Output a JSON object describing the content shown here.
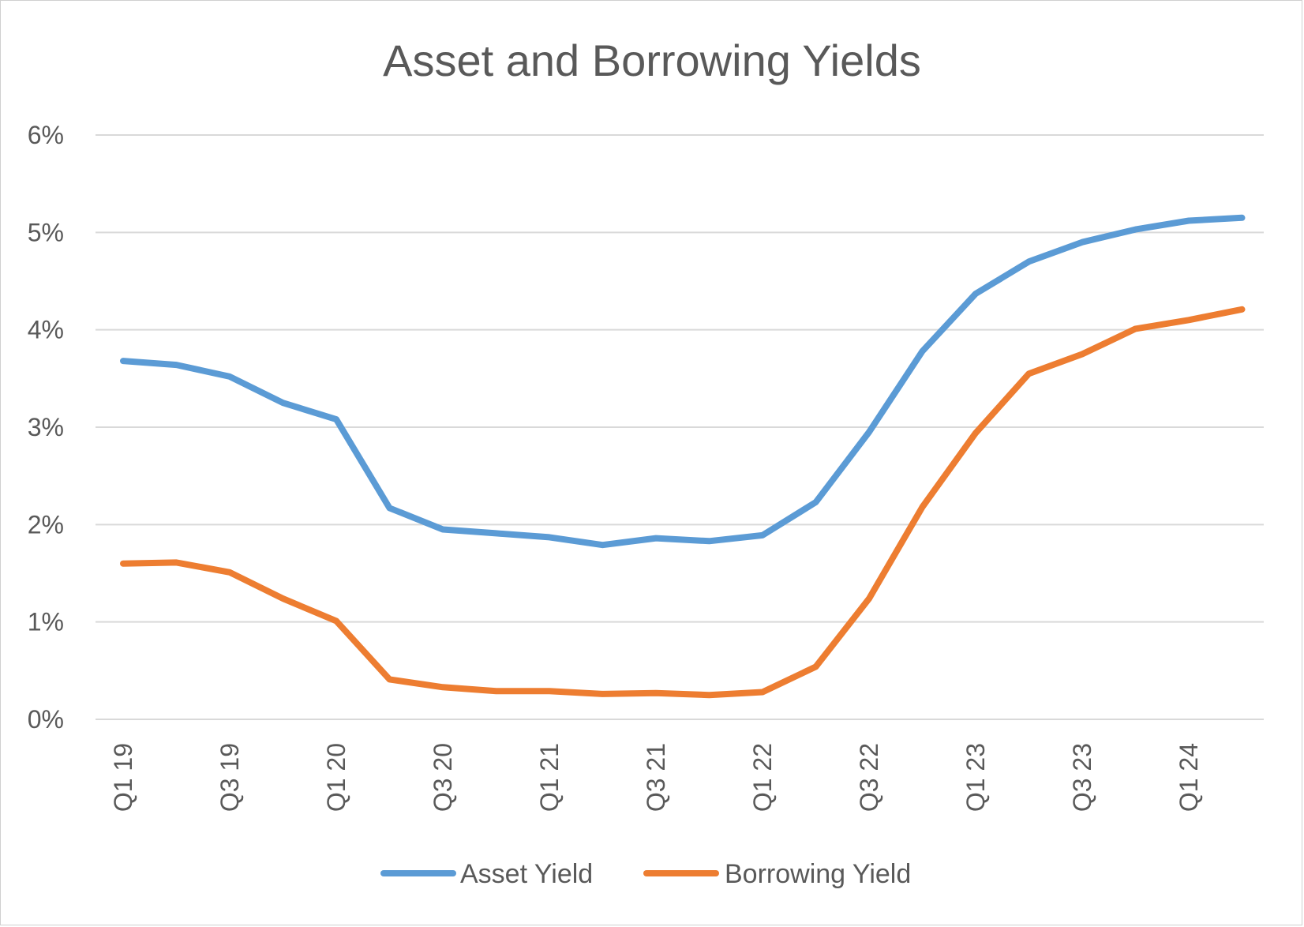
{
  "chart_data": {
    "type": "line",
    "title": "Asset and Borrowing Yields",
    "xlabel": "",
    "ylabel": "",
    "ylim": [
      0,
      6
    ],
    "y_ticks": [
      "0%",
      "1%",
      "2%",
      "3%",
      "4%",
      "5%",
      "6%"
    ],
    "y_tick_values": [
      0,
      1,
      2,
      3,
      4,
      5,
      6
    ],
    "categories": [
      "Q1 19",
      "Q2 19",
      "Q3 19",
      "Q4 19",
      "Q1 20",
      "Q2 20",
      "Q3 20",
      "Q4 20",
      "Q1 21",
      "Q2 21",
      "Q3 21",
      "Q4 21",
      "Q1 22",
      "Q2 22",
      "Q3 22",
      "Q4 22",
      "Q1 23",
      "Q2 23",
      "Q3 23",
      "Q4 23",
      "Q1 24",
      "Q2 24"
    ],
    "x_tick_labels": [
      "Q1 19",
      "",
      "Q3 19",
      "",
      "Q1 20",
      "",
      "Q3 20",
      "",
      "Q1 21",
      "",
      "Q3 21",
      "",
      "Q1 22",
      "",
      "Q3 22",
      "",
      "Q1 23",
      "",
      "Q3 23",
      "",
      "Q1 24",
      ""
    ],
    "grid": true,
    "legend_position": "bottom",
    "series": [
      {
        "name": "Asset Yield",
        "color": "#5B9BD5",
        "values": [
          3.68,
          3.64,
          3.52,
          3.25,
          3.08,
          2.17,
          1.95,
          1.91,
          1.87,
          1.79,
          1.86,
          1.83,
          1.89,
          2.23,
          2.95,
          3.78,
          4.37,
          4.7,
          4.9,
          5.03,
          5.12,
          5.15
        ]
      },
      {
        "name": "Borrowing Yield",
        "color": "#ED7D31",
        "values": [
          1.6,
          1.61,
          1.51,
          1.24,
          1.01,
          0.41,
          0.33,
          0.29,
          0.29,
          0.26,
          0.27,
          0.25,
          0.28,
          0.54,
          1.24,
          2.18,
          2.94,
          3.55,
          3.75,
          4.01,
          4.1,
          4.21
        ]
      }
    ]
  }
}
